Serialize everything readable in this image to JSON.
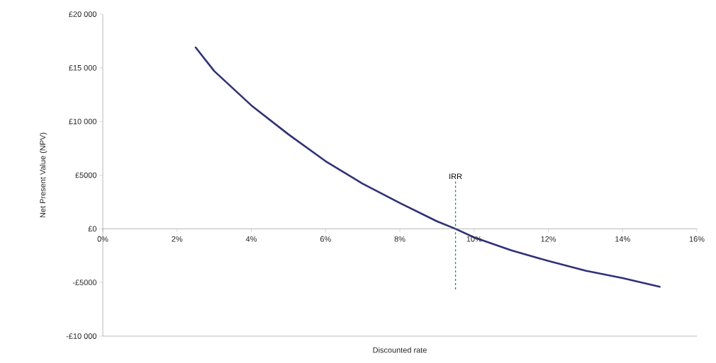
{
  "chart_data": {
    "type": "line",
    "xlabel": "Discounted rate",
    "ylabel": "Net Present Value (NPV)",
    "x": [
      2.5,
      3,
      4,
      5,
      6,
      7,
      8,
      9,
      9.5,
      10,
      11,
      12,
      13,
      14,
      15
    ],
    "series": [
      {
        "color": "#2e3178",
        "values": [
          16900,
          14700,
          11500,
          8800,
          6300,
          4200,
          2400,
          700,
          0,
          -800,
          -2000,
          -3000,
          -3900,
          -4600,
          -5400
        ]
      }
    ],
    "xlim": [
      0,
      16
    ],
    "xticks": [
      {
        "value": 0,
        "label": "0%"
      },
      {
        "value": 2,
        "label": "2%"
      },
      {
        "value": 4,
        "label": "4%"
      },
      {
        "value": 6,
        "label": "6%"
      },
      {
        "value": 8,
        "label": "8%"
      },
      {
        "value": 10,
        "label": "10%"
      },
      {
        "value": 12,
        "label": "12%"
      },
      {
        "value": 14,
        "label": "14%"
      },
      {
        "value": 16,
        "label": "16%"
      }
    ],
    "ylim": [
      -10000,
      20000
    ],
    "yticks": [
      {
        "value": -10000,
        "label": "-£10 000"
      },
      {
        "value": -5000,
        "label": "-£5000"
      },
      {
        "value": 0,
        "label": "£0"
      },
      {
        "value": 5000,
        "label": "£5000"
      },
      {
        "value": 10000,
        "label": "£10 000"
      },
      {
        "value": 15000,
        "label": "£15 000"
      },
      {
        "value": 20000,
        "label": "£20 000"
      }
    ],
    "ref_lines": [
      {
        "axis": "x",
        "value": 9.5,
        "label": "IRR",
        "color": "#2e8b3e",
        "line_style": "dashed"
      }
    ],
    "marker": "none",
    "line_style": "solid"
  }
}
